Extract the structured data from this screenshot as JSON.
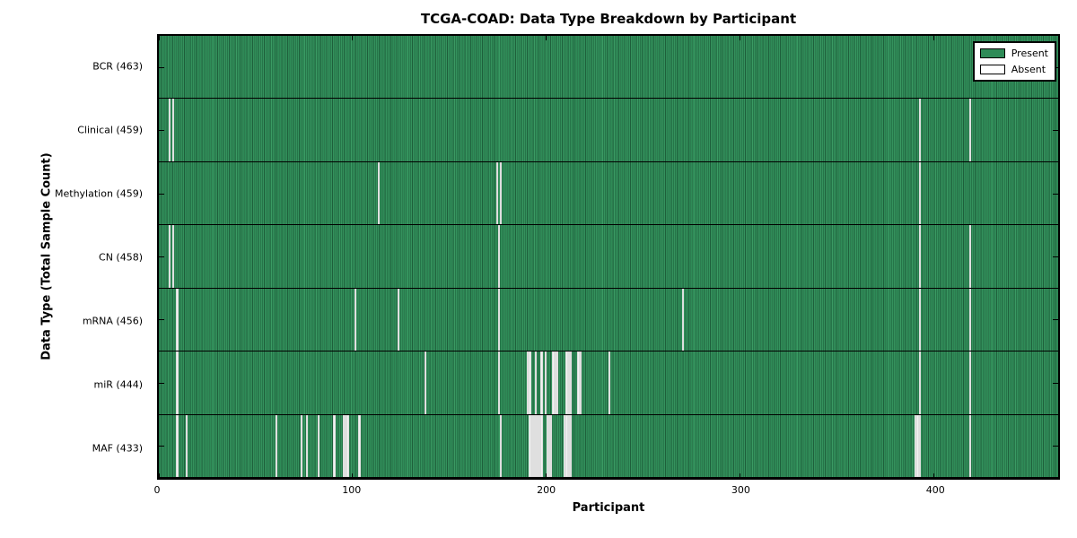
{
  "chart_data": {
    "type": "heatmap",
    "title": "TCGA-COAD: Data Type Breakdown by Participant",
    "xlabel": "Participant",
    "ylabel": "Data Type (Total Sample Count)",
    "x_max": 464,
    "x_ticks": [
      0,
      100,
      200,
      300,
      400
    ],
    "grid": false,
    "legend_position": "upper right",
    "colors": {
      "present": "#2e8b57",
      "absent": "#ffffff",
      "border": "#000000"
    },
    "legend": [
      {
        "label": "Present",
        "color": "#2e8b57"
      },
      {
        "label": "Absent",
        "color": "#ffffff"
      }
    ],
    "rows": [
      {
        "label": "BCR (463)",
        "data_type": "BCR",
        "total": 463,
        "absent": []
      },
      {
        "label": "Clinical (459)",
        "data_type": "Clinical",
        "total": 459,
        "absent": [
          5,
          7,
          392,
          418
        ]
      },
      {
        "label": "Methylation (459)",
        "data_type": "Methylation",
        "total": 459,
        "absent": [
          113,
          174,
          176,
          392
        ]
      },
      {
        "label": "CN (458)",
        "data_type": "CN",
        "total": 458,
        "absent": [
          5,
          7,
          175,
          392,
          418
        ]
      },
      {
        "label": "mRNA (456)",
        "data_type": "mRNA",
        "total": 456,
        "absent": [
          9,
          101,
          123,
          175,
          270,
          392,
          418
        ]
      },
      {
        "label": "miR (444)",
        "data_type": "miR",
        "total": 444,
        "absent": [
          9,
          137,
          175,
          190,
          191,
          194,
          197,
          199,
          203,
          204,
          205,
          210,
          211,
          212,
          216,
          217,
          232,
          392,
          418
        ]
      },
      {
        "label": "MAF (433)",
        "data_type": "MAF",
        "total": 433,
        "absent": [
          9,
          14,
          60,
          73,
          76,
          82,
          90,
          95,
          96,
          97,
          103,
          176,
          191,
          192,
          193,
          194,
          195,
          196,
          197,
          200,
          201,
          202,
          209,
          210,
          211,
          212,
          390,
          391,
          392,
          418
        ]
      }
    ]
  }
}
